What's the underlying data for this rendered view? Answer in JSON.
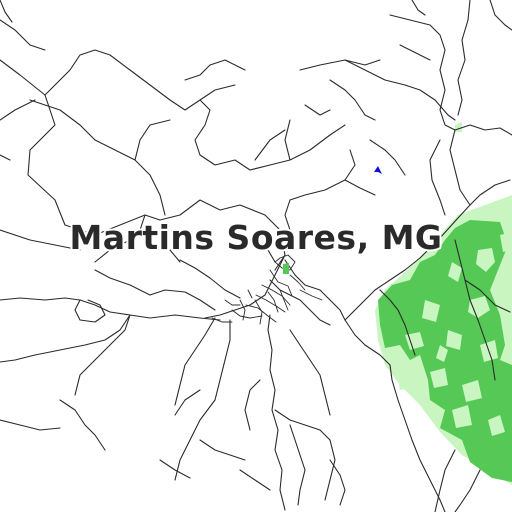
{
  "map": {
    "place_label": "Martins Soares, MG",
    "colors": {
      "background": "#ffffff",
      "road": "#2b2b2b",
      "forest": "#55c855",
      "scrub": "#c8f5c0",
      "water": "#1010e0"
    }
  }
}
